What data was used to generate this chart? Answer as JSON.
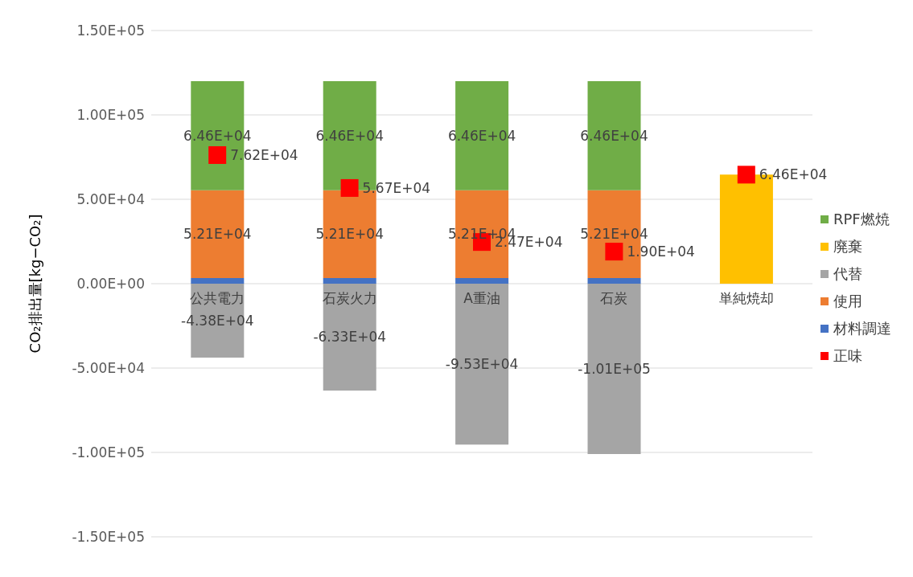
{
  "chart_data": {
    "type": "bar",
    "stacked": true,
    "ylabel": "CO₂排出量[kg−CO₂]",
    "categories": [
      "公共電力",
      "石炭火力",
      "A重油",
      "石炭",
      "単純焼却"
    ],
    "series": [
      {
        "name": "材料調達",
        "color": "#4472c4",
        "values": [
          3300,
          3300,
          3300,
          3300,
          null
        ],
        "value_labels": [
          null,
          null,
          null,
          null,
          null
        ]
      },
      {
        "name": "使用",
        "color": "#ed7d31",
        "values": [
          52100,
          52100,
          52100,
          52100,
          null
        ],
        "value_labels": [
          "5.21E+04",
          "5.21E+04",
          "5.21E+04",
          "5.21E+04",
          null
        ]
      },
      {
        "name": "代替",
        "color": "#a5a5a5",
        "values": [
          -43800,
          -63300,
          -95300,
          -101000,
          null
        ],
        "value_labels": [
          "-4.38E+04",
          "-6.33E+04",
          "-9.53E+04",
          "-1.01E+05",
          null
        ]
      },
      {
        "name": "廃棄",
        "color": "#ffc000",
        "values": [
          null,
          null,
          null,
          null,
          64600
        ],
        "value_labels": [
          null,
          null,
          null,
          null,
          null
        ]
      },
      {
        "name": "RPF燃焼",
        "color": "#70ad47",
        "values": [
          64600,
          64600,
          64600,
          64600,
          null
        ],
        "value_labels": [
          "6.46E+04",
          "6.46E+04",
          "6.46E+04",
          "6.46E+04",
          null
        ]
      },
      {
        "name": "正味",
        "type": "scatter",
        "marker": "square",
        "color": "#ff0000",
        "values": [
          76200,
          56700,
          24700,
          19000,
          64600
        ],
        "value_labels": [
          "7.62E+04",
          "5.67E+04",
          "2.47E+04",
          "1.90E+04",
          "6.46E+04"
        ]
      }
    ],
    "ylim": [
      -150000,
      150000
    ],
    "yticks": [
      {
        "value": -150000,
        "label": "-1.50E+05"
      },
      {
        "value": -100000,
        "label": "-1.00E+05"
      },
      {
        "value": -50000,
        "label": "-5.00E+04"
      },
      {
        "value": 0,
        "label": "0.00E+00"
      },
      {
        "value": 50000,
        "label": "5.00E+04"
      },
      {
        "value": 100000,
        "label": "1.00E+05"
      },
      {
        "value": 150000,
        "label": "1.50E+05"
      }
    ],
    "grid": "y",
    "legend": "right"
  }
}
